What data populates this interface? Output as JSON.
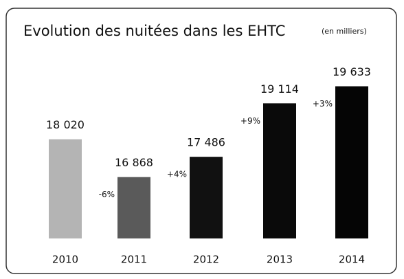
{
  "chart_data": {
    "type": "bar",
    "title": "Evolution des nuitées dans les EHTC",
    "subtitle": "(en milliers)",
    "categories": [
      "2010",
      "2011",
      "2012",
      "2013",
      "2014"
    ],
    "values": [
      18020,
      16868,
      17486,
      19114,
      19633
    ],
    "value_labels": [
      "18 020",
      "16 868",
      "17 486",
      "19 114",
      "19 633"
    ],
    "colors": [
      "#b4b4b4",
      "#5a5a5a",
      "#111111",
      "#0a0a0a",
      "#050505"
    ],
    "annotations": [
      "-6%",
      "+4%",
      "+9%",
      "+3%"
    ],
    "ylim": [
      15000,
      20000
    ]
  }
}
